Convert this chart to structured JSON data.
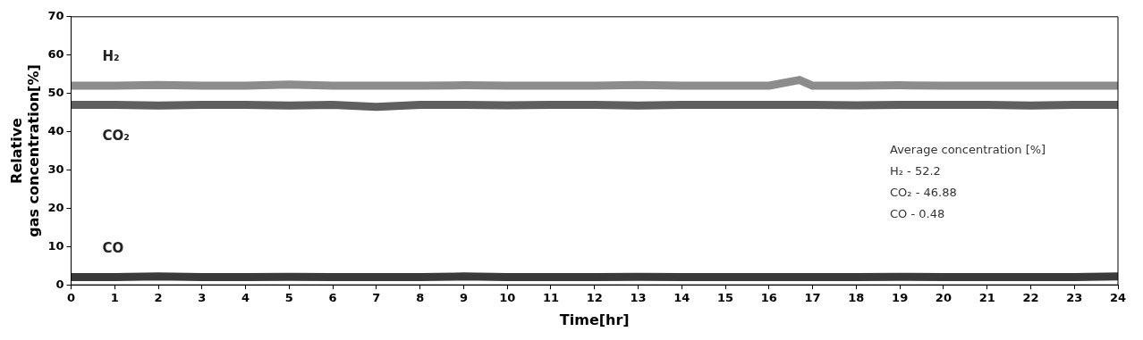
{
  "chart_data": {
    "type": "line",
    "xlabel": "Time[hr]",
    "ylabel": "Relative\ngas concentration[%]",
    "x": [
      0,
      1,
      2,
      3,
      4,
      5,
      6,
      7,
      8,
      9,
      10,
      11,
      12,
      13,
      14,
      15,
      16,
      16.7,
      17,
      18,
      19,
      20,
      21,
      22,
      23,
      24
    ],
    "series": [
      {
        "name": "H₂",
        "color": "#8c8c8c",
        "values": [
          52,
          52,
          52.2,
          52,
          52,
          52.3,
          52,
          52,
          52,
          52.1,
          52,
          52,
          52,
          52.2,
          52,
          52,
          52,
          53.5,
          52,
          52,
          52.1,
          52,
          52,
          52,
          52,
          52
        ]
      },
      {
        "name": "CO₂",
        "color": "#5f5f5f",
        "values": [
          47,
          47,
          46.8,
          47,
          47,
          46.8,
          47,
          46.5,
          47,
          47,
          46.9,
          47,
          47,
          46.8,
          47,
          47,
          47,
          47,
          47,
          46.9,
          47,
          47,
          47,
          46.8,
          47,
          47
        ]
      },
      {
        "name": "CO",
        "color": "#3a3a3a",
        "values": [
          2,
          2,
          2.2,
          2,
          2,
          2.1,
          2,
          2,
          2,
          2.2,
          2,
          2,
          2,
          2.1,
          2,
          2,
          2,
          2,
          2,
          2,
          2.1,
          2,
          2,
          2,
          2,
          2.2
        ]
      }
    ],
    "xlim": [
      0,
      24
    ],
    "xticks": [
      0,
      1,
      2,
      3,
      4,
      5,
      6,
      7,
      8,
      9,
      10,
      11,
      12,
      13,
      14,
      15,
      16,
      17,
      18,
      19,
      20,
      21,
      22,
      23,
      24
    ],
    "ylim": [
      0,
      70
    ],
    "yticks": [
      0,
      10,
      20,
      30,
      40,
      50,
      60,
      70
    ],
    "grid": false,
    "legend": false,
    "marker": "none",
    "line_style": "solid",
    "annotations": [
      "Average concentration [%]",
      "H₂ - 52.2",
      "CO₂ - 46.88",
      "CO - 0.48"
    ]
  }
}
